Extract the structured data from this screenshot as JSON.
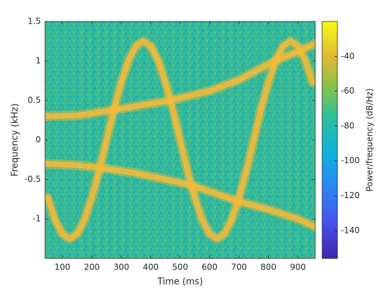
{
  "chart_data": {
    "type": "spectrogram",
    "x_label": "Time (ms)",
    "y_label": "Frequency (kHz)",
    "xlim": [
      41,
      959
    ],
    "ylim": [
      -1.5,
      1.5
    ],
    "xticks": [
      100,
      200,
      300,
      400,
      500,
      600,
      700,
      800,
      900
    ],
    "yticks": [
      -1,
      -0.5,
      0,
      0.5,
      1,
      1.5
    ],
    "colorbar": {
      "label": "Power/frequency (dB/Hz)",
      "lim": [
        -156,
        -20
      ],
      "ticks": [
        -140,
        -120,
        -100,
        -80,
        -60,
        -40
      ]
    },
    "series": [
      {
        "color": "#f4bb3a",
        "x": [
          50,
          75,
          100,
          125,
          150,
          175,
          200,
          225,
          250,
          275,
          300,
          325,
          350,
          375,
          400,
          425,
          450,
          475,
          500,
          525,
          550,
          575,
          600,
          625,
          650,
          675,
          700,
          725,
          750,
          775,
          800,
          825,
          850,
          875,
          900,
          925,
          950
        ],
        "values": [
          -0.73,
          -1.01,
          -1.19,
          -1.25,
          -1.19,
          -1.01,
          -0.73,
          -0.39,
          0,
          0.39,
          0.73,
          1.01,
          1.19,
          1.25,
          1.19,
          1.01,
          0.73,
          0.39,
          0,
          -0.39,
          -0.73,
          -1.01,
          -1.19,
          -1.25,
          -1.19,
          -1.01,
          -0.73,
          -0.39,
          0,
          0.39,
          0.73,
          1.01,
          1.19,
          1.25,
          1.19,
          1.01,
          0.73
        ]
      },
      {
        "color": "#f4bb3a",
        "x": [
          41,
          150,
          275,
          400,
          465,
          600,
          700,
          810,
          900,
          959
        ],
        "values": [
          0.3,
          0.31,
          0.38,
          0.46,
          0.5,
          0.62,
          0.76,
          0.98,
          1.12,
          1.22
        ]
      },
      {
        "color": "#f4bb3a",
        "x": [
          41,
          150,
          225,
          350,
          450,
          545,
          700,
          800,
          900,
          959
        ],
        "values": [
          -0.3,
          -0.32,
          -0.35,
          -0.42,
          -0.5,
          -0.58,
          -0.78,
          -0.88,
          -1.0,
          -1.1
        ]
      }
    ]
  }
}
